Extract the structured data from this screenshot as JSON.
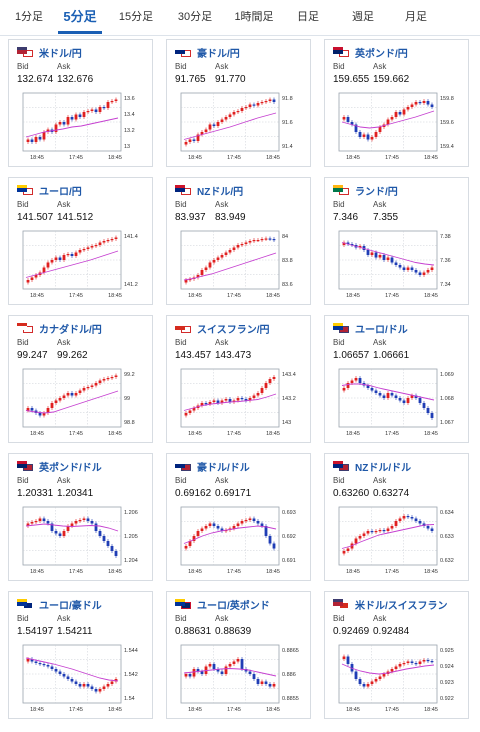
{
  "tabs": [
    "1分足",
    "5分足",
    "15分足",
    "30分足",
    "1時間足",
    "日足",
    "週足",
    "月足"
  ],
  "active_tab": "5分足",
  "labels": {
    "bid": "Bid",
    "ask": "Ask"
  },
  "colors": {
    "accent": "#1a5fb4",
    "pair_text": "#1f58a8",
    "up": "#e02020",
    "down": "#1f3db5",
    "ma": "#c53fd0"
  },
  "cards": [
    {
      "pair": "米ドル/円",
      "flag": "us-jp-flag",
      "bid": "132.674",
      "ask": "132.676",
      "ticks": [
        "13.6",
        "13.4",
        "13.2",
        "13"
      ],
      "xticks": [
        "18:45",
        "17:45",
        "18:45"
      ],
      "series": [
        0.15,
        0.1,
        0.2,
        0.15,
        0.3,
        0.35,
        0.3,
        0.45,
        0.5,
        0.45,
        0.6,
        0.55,
        0.65,
        0.6,
        0.7,
        0.72,
        0.75,
        0.7,
        0.8,
        0.78,
        0.9,
        0.92,
        0.95
      ],
      "ma": [
        0.2,
        0.25,
        0.3,
        0.33,
        0.36,
        0.4,
        0.42,
        0.46,
        0.5,
        0.54,
        0.58
      ]
    },
    {
      "pair": "豪ドル/円",
      "flag": "au-jp-flag",
      "bid": "91.765",
      "ask": "91.770",
      "ticks": [
        "91.8",
        "91.6",
        "91.4"
      ],
      "xticks": [
        "18:45",
        "17:45",
        "18:45"
      ],
      "series": [
        0.1,
        0.15,
        0.12,
        0.25,
        0.3,
        0.35,
        0.45,
        0.42,
        0.5,
        0.55,
        0.6,
        0.65,
        0.7,
        0.72,
        0.78,
        0.8,
        0.85,
        0.83,
        0.88,
        0.9,
        0.92,
        0.95,
        0.9
      ],
      "ma": [
        0.15,
        0.2,
        0.25,
        0.3,
        0.35,
        0.4,
        0.46,
        0.52,
        0.58,
        0.63,
        0.68
      ]
    },
    {
      "pair": "英ポンド/円",
      "flag": "gb-jp-flag",
      "bid": "159.655",
      "ask": "159.662",
      "ticks": [
        "159.8",
        "159.6",
        "159.4"
      ],
      "xticks": [
        "18:45",
        "17:45",
        "18:45"
      ],
      "series": [
        0.6,
        0.5,
        0.45,
        0.3,
        0.2,
        0.25,
        0.15,
        0.2,
        0.3,
        0.4,
        0.45,
        0.55,
        0.6,
        0.7,
        0.65,
        0.75,
        0.8,
        0.85,
        0.9,
        0.88,
        0.92,
        0.85,
        0.8
      ],
      "ma": [
        0.5,
        0.45,
        0.4,
        0.38,
        0.4,
        0.45,
        0.5,
        0.55,
        0.6,
        0.66,
        0.72
      ]
    },
    {
      "pair": "ユーロ/円",
      "flag": "eu-jp-flag",
      "bid": "141.507",
      "ask": "141.512",
      "ticks": [
        "141.4",
        "141.2"
      ],
      "xticks": [
        "18:45",
        "17:45",
        "18:45"
      ],
      "series": [
        0.1,
        0.15,
        0.2,
        0.25,
        0.35,
        0.45,
        0.5,
        0.55,
        0.5,
        0.6,
        0.62,
        0.58,
        0.65,
        0.7,
        0.72,
        0.75,
        0.78,
        0.8,
        0.85,
        0.88,
        0.9,
        0.92,
        0.95
      ],
      "ma": [
        0.15,
        0.2,
        0.25,
        0.3,
        0.35,
        0.4,
        0.45,
        0.5,
        0.56,
        0.62,
        0.68
      ]
    },
    {
      "pair": "NZドル/円",
      "flag": "nz-jp-flag",
      "bid": "83.937",
      "ask": "83.949",
      "ticks": [
        "84",
        "83.8",
        "83.6"
      ],
      "xticks": [
        "18:45",
        "17:45",
        "18:45"
      ],
      "series": [
        0.1,
        0.12,
        0.15,
        0.2,
        0.3,
        0.35,
        0.45,
        0.5,
        0.55,
        0.6,
        0.65,
        0.7,
        0.75,
        0.8,
        0.82,
        0.85,
        0.88,
        0.9,
        0.9,
        0.92,
        0.93,
        0.92,
        0.9
      ],
      "ma": [
        0.1,
        0.13,
        0.18,
        0.22,
        0.28,
        0.34,
        0.4,
        0.46,
        0.52,
        0.58,
        0.64
      ]
    },
    {
      "pair": "ランド/円",
      "flag": "za-jp-flag",
      "bid": "7.346",
      "ask": "7.355",
      "ticks": [
        "7.38",
        "7.36",
        "7.34"
      ],
      "xticks": [
        "18:45",
        "17:45",
        "18:45"
      ],
      "series": [
        0.85,
        0.82,
        0.8,
        0.75,
        0.78,
        0.7,
        0.6,
        0.65,
        0.55,
        0.6,
        0.5,
        0.55,
        0.45,
        0.4,
        0.35,
        0.3,
        0.35,
        0.3,
        0.25,
        0.2,
        0.25,
        0.3,
        0.35
      ],
      "ma": [
        0.85,
        0.8,
        0.75,
        0.7,
        0.65,
        0.6,
        0.55,
        0.5,
        0.45,
        0.42,
        0.4
      ]
    },
    {
      "pair": "カナダドル/円",
      "flag": "ca-jp-flag",
      "bid": "99.247",
      "ask": "99.262",
      "ticks": [
        "99.2",
        "99",
        "98.8"
      ],
      "xticks": [
        "18:45",
        "17:45",
        "18:45"
      ],
      "series": [
        0.3,
        0.25,
        0.2,
        0.15,
        0.2,
        0.3,
        0.4,
        0.45,
        0.5,
        0.55,
        0.6,
        0.55,
        0.6,
        0.65,
        0.7,
        0.72,
        0.75,
        0.8,
        0.85,
        0.88,
        0.9,
        0.92,
        0.95
      ],
      "ma": [
        0.25,
        0.22,
        0.2,
        0.22,
        0.28,
        0.34,
        0.4,
        0.46,
        0.52,
        0.58,
        0.64
      ]
    },
    {
      "pair": "スイスフラン/円",
      "flag": "ch-jp-flag",
      "bid": "143.457",
      "ask": "143.473",
      "ticks": [
        "143.4",
        "143.2",
        "143"
      ],
      "xticks": [
        "18:45",
        "17:45",
        "18:45"
      ],
      "series": [
        0.2,
        0.25,
        0.3,
        0.35,
        0.4,
        0.38,
        0.42,
        0.45,
        0.4,
        0.45,
        0.48,
        0.42,
        0.45,
        0.5,
        0.48,
        0.45,
        0.5,
        0.55,
        0.6,
        0.7,
        0.8,
        0.88,
        0.92
      ],
      "ma": [
        0.25,
        0.3,
        0.35,
        0.38,
        0.4,
        0.42,
        0.43,
        0.45,
        0.47,
        0.52,
        0.58
      ]
    },
    {
      "pair": "ユーロ/ドル",
      "flag": "eu-us-flag",
      "bid": "1.06657",
      "ask": "1.06661",
      "ticks": [
        "1.069",
        "1.068",
        "1.067"
      ],
      "xticks": [
        "18:45",
        "17:45",
        "18:45"
      ],
      "series": [
        0.7,
        0.8,
        0.85,
        0.9,
        0.8,
        0.75,
        0.7,
        0.65,
        0.6,
        0.55,
        0.5,
        0.6,
        0.55,
        0.5,
        0.45,
        0.4,
        0.5,
        0.55,
        0.5,
        0.4,
        0.3,
        0.2,
        0.1
      ],
      "ma": [
        0.75,
        0.78,
        0.78,
        0.75,
        0.7,
        0.66,
        0.62,
        0.58,
        0.54,
        0.5,
        0.46
      ]
    },
    {
      "pair": "英ポンド/ドル",
      "flag": "gb-us-flag",
      "bid": "1.20331",
      "ask": "1.20341",
      "ticks": [
        "1.206",
        "1.205",
        "1.204"
      ],
      "xticks": [
        "18:45",
        "17:45",
        "18:45"
      ],
      "series": [
        0.75,
        0.78,
        0.8,
        0.85,
        0.8,
        0.75,
        0.6,
        0.55,
        0.5,
        0.6,
        0.7,
        0.75,
        0.8,
        0.82,
        0.85,
        0.8,
        0.75,
        0.6,
        0.5,
        0.4,
        0.3,
        0.2,
        0.1
      ],
      "ma": [
        0.7,
        0.72,
        0.74,
        0.72,
        0.7,
        0.69,
        0.7,
        0.71,
        0.7,
        0.66,
        0.6
      ]
    },
    {
      "pair": "豪ドル/ドル",
      "flag": "au-us-flag",
      "bid": "0.69162",
      "ask": "0.69171",
      "ticks": [
        "0.693",
        "0.692",
        "0.691"
      ],
      "xticks": [
        "18:45",
        "17:45",
        "18:45"
      ],
      "series": [
        0.3,
        0.4,
        0.5,
        0.6,
        0.65,
        0.7,
        0.75,
        0.7,
        0.65,
        0.6,
        0.62,
        0.65,
        0.7,
        0.75,
        0.8,
        0.82,
        0.85,
        0.8,
        0.75,
        0.7,
        0.5,
        0.35,
        0.25
      ],
      "ma": [
        0.35,
        0.42,
        0.5,
        0.56,
        0.6,
        0.63,
        0.66,
        0.68,
        0.7,
        0.68,
        0.64
      ]
    },
    {
      "pair": "NZドル/ドル",
      "flag": "nz-us-flag",
      "bid": "0.63260",
      "ask": "0.63274",
      "ticks": [
        "0.634",
        "0.633",
        "0.632"
      ],
      "xticks": [
        "18:45",
        "17:45",
        "18:45"
      ],
      "series": [
        0.2,
        0.25,
        0.35,
        0.45,
        0.5,
        0.55,
        0.6,
        0.58,
        0.6,
        0.62,
        0.6,
        0.65,
        0.7,
        0.8,
        0.85,
        0.9,
        0.88,
        0.85,
        0.8,
        0.75,
        0.7,
        0.65,
        0.6
      ],
      "ma": [
        0.25,
        0.3,
        0.38,
        0.45,
        0.52,
        0.56,
        0.6,
        0.64,
        0.68,
        0.72,
        0.73
      ]
    },
    {
      "pair": "ユーロ/豪ドル",
      "flag": "eu-au-flag",
      "bid": "1.54197",
      "ask": "1.54211",
      "ticks": [
        "1.544",
        "1.542",
        "1.54"
      ],
      "xticks": [
        "18:45",
        "17:45",
        "18:45"
      ],
      "series": [
        0.8,
        0.75,
        0.72,
        0.7,
        0.68,
        0.65,
        0.6,
        0.55,
        0.5,
        0.45,
        0.4,
        0.35,
        0.3,
        0.25,
        0.3,
        0.25,
        0.2,
        0.15,
        0.2,
        0.25,
        0.3,
        0.35,
        0.4
      ],
      "ma": [
        0.82,
        0.78,
        0.74,
        0.7,
        0.65,
        0.6,
        0.54,
        0.48,
        0.42,
        0.38,
        0.36
      ]
    },
    {
      "pair": "ユーロ/英ポンド",
      "flag": "eu-gb-flag",
      "bid": "0.88631",
      "ask": "0.88639",
      "ticks": [
        "0.8865",
        "0.886",
        "0.8855"
      ],
      "xticks": [
        "18:45",
        "17:45",
        "18:45"
      ],
      "series": [
        0.5,
        0.45,
        0.6,
        0.55,
        0.5,
        0.65,
        0.7,
        0.6,
        0.55,
        0.5,
        0.65,
        0.7,
        0.75,
        0.8,
        0.6,
        0.55,
        0.5,
        0.4,
        0.3,
        0.35,
        0.3,
        0.25,
        0.3
      ],
      "ma": [
        0.52,
        0.54,
        0.56,
        0.58,
        0.6,
        0.61,
        0.6,
        0.58,
        0.54,
        0.5,
        0.46
      ]
    },
    {
      "pair": "米ドル/スイスフラン",
      "flag": "us-ch-flag",
      "bid": "0.92469",
      "ask": "0.92484",
      "ticks": [
        "0.925",
        "0.924",
        "0.923",
        "0.922"
      ],
      "xticks": [
        "18:45",
        "17:45",
        "18:45"
      ],
      "series": [
        0.85,
        0.7,
        0.55,
        0.4,
        0.3,
        0.25,
        0.3,
        0.35,
        0.4,
        0.45,
        0.5,
        0.55,
        0.6,
        0.65,
        0.7,
        0.72,
        0.75,
        0.72,
        0.7,
        0.75,
        0.78,
        0.76,
        0.75
      ],
      "ma": [
        0.7,
        0.62,
        0.56,
        0.52,
        0.5,
        0.52,
        0.56,
        0.6,
        0.63,
        0.66,
        0.68
      ]
    }
  ]
}
